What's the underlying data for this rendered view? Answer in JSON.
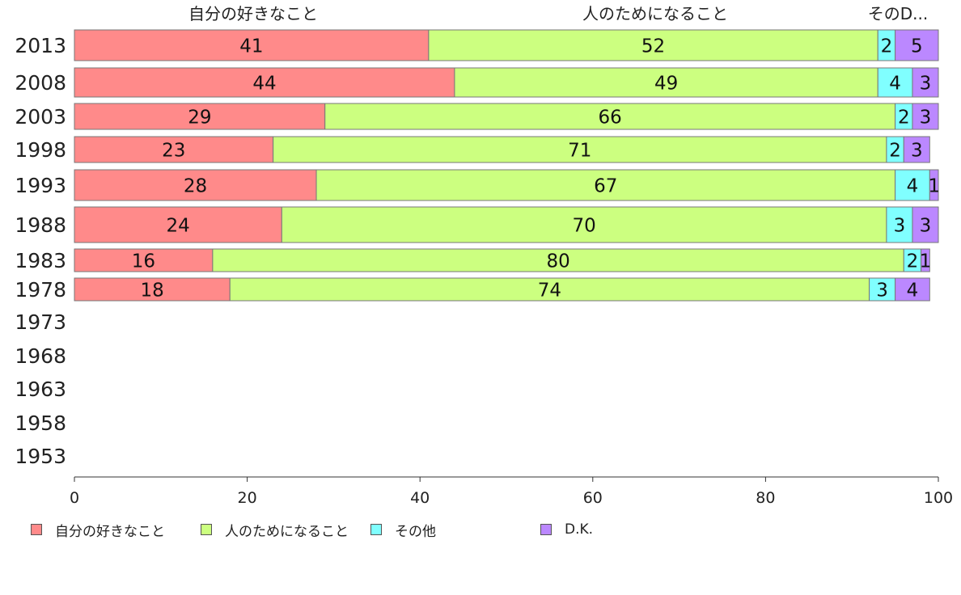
{
  "chart_data": {
    "type": "bar",
    "orientation": "horizontal",
    "stacked": true,
    "categories": [
      "2013",
      "2008",
      "2003",
      "1998",
      "1993",
      "1988",
      "1983",
      "1978",
      "1973",
      "1968",
      "1963",
      "1958",
      "1953"
    ],
    "series": [
      {
        "name": "自分の好きなこと",
        "color": "#ff8a8a",
        "values": [
          41,
          44,
          29,
          23,
          28,
          24,
          16,
          18,
          null,
          null,
          null,
          null,
          null
        ]
      },
      {
        "name": "人のためになること",
        "color": "#ccff80",
        "values": [
          52,
          49,
          66,
          71,
          67,
          70,
          80,
          74,
          null,
          null,
          null,
          null,
          null
        ]
      },
      {
        "name": "その他",
        "color": "#80ffff",
        "values": [
          2,
          4,
          2,
          2,
          4,
          3,
          2,
          3,
          null,
          null,
          null,
          null,
          null
        ]
      },
      {
        "name": "D.K.",
        "color": "#bb88ff",
        "values": [
          5,
          3,
          3,
          3,
          1,
          3,
          1,
          4,
          null,
          null,
          null,
          null,
          null
        ]
      }
    ],
    "top_labels": [
      "自分の好きなこと",
      "人のためになること",
      "そのD..."
    ],
    "xlim": [
      0,
      100
    ],
    "xticks": [
      "0",
      "20",
      "40",
      "60",
      "80",
      "100"
    ],
    "grid": false,
    "legend_position": "bottom"
  }
}
